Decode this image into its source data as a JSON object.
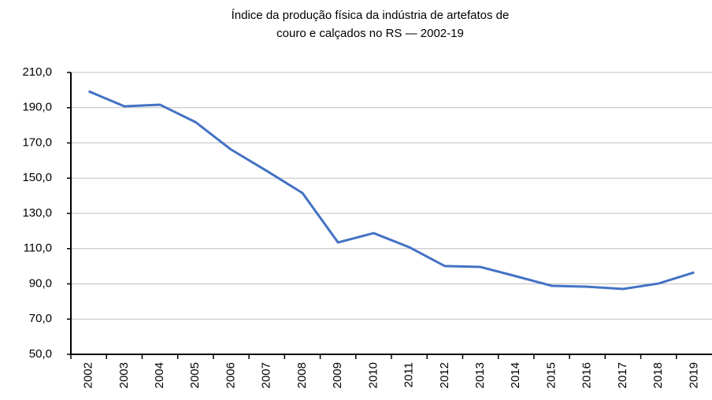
{
  "chart_data": {
    "type": "line",
    "title": [
      "Índice da produção física da indústria de artefatos de",
      "couro e calçados no RS — 2002-19"
    ],
    "categories": [
      "2002",
      "2003",
      "2004",
      "2005",
      "2006",
      "2007",
      "2008",
      "2009",
      "2010",
      "2011",
      "2012",
      "2013",
      "2014",
      "2015",
      "2016",
      "2017",
      "2018",
      "2019"
    ],
    "series": [
      {
        "color": "#4472c4",
        "values": [
          199.3,
          190.8,
          191.7,
          181.8,
          166.2,
          154.1,
          141.6,
          113.5,
          118.8,
          110.8,
          100.1,
          99.6,
          94.3,
          88.9,
          88.4,
          87.1,
          90.2,
          96.5
        ]
      }
    ],
    "ylim": [
      50,
      210
    ],
    "yticks": [
      {
        "value": 50,
        "label": "50,0"
      },
      {
        "value": 70,
        "label": "70,0"
      },
      {
        "value": 90,
        "label": "90,0"
      },
      {
        "value": 110,
        "label": "110,0"
      },
      {
        "value": 130,
        "label": "130,0"
      },
      {
        "value": 150,
        "label": "150,0"
      },
      {
        "value": 170,
        "label": "170,0"
      },
      {
        "value": 190,
        "label": "190,0"
      },
      {
        "value": 210,
        "label": "210,0"
      }
    ],
    "grid": true
  }
}
